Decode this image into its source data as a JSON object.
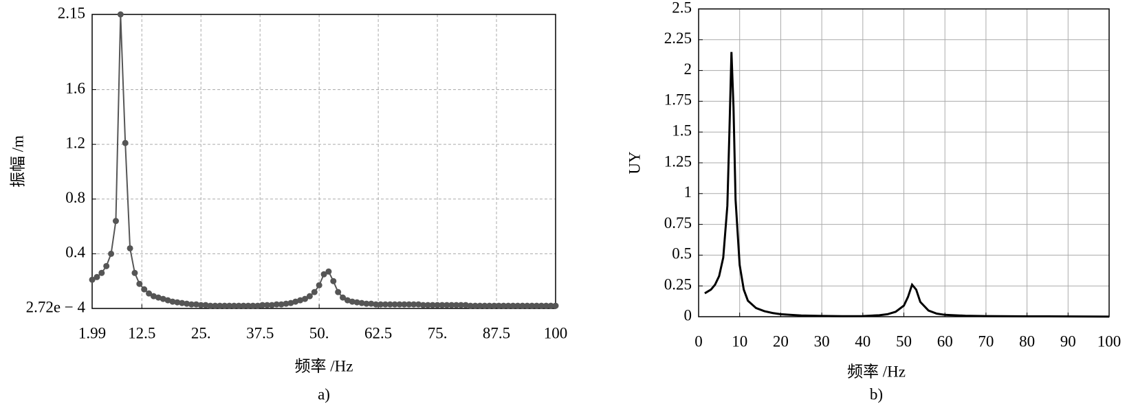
{
  "chart_data": [
    {
      "type": "line",
      "caption": "a)",
      "xlabel": "频率 /Hz",
      "ylabel": "振幅 /m",
      "color": "#555555",
      "markers": true,
      "grid": true,
      "grid_style": "dashed",
      "xlim": [
        1.99,
        100
      ],
      "ylim": [
        0.000272,
        2.15
      ],
      "xticks": [
        1.99,
        12.5,
        {
          "value": 25,
          "label": "25."
        },
        37.5,
        {
          "value": 50,
          "label": "50."
        },
        62.5,
        {
          "value": 75,
          "label": "75."
        },
        87.5,
        100
      ],
      "yticks": [
        {
          "value": 0.000272,
          "label": "2.72e − 4"
        },
        0.4,
        0.8,
        1.2,
        1.6,
        2.15
      ],
      "x": [
        2,
        3,
        4,
        5,
        6,
        7,
        8,
        9,
        10,
        11,
        12,
        13,
        14,
        15,
        16,
        17,
        18,
        19,
        20,
        21,
        22,
        23,
        24,
        25,
        26,
        27,
        28,
        29,
        30,
        31,
        32,
        33,
        34,
        35,
        36,
        37,
        38,
        39,
        40,
        41,
        42,
        43,
        44,
        45,
        46,
        47,
        48,
        49,
        50,
        51,
        52,
        53,
        54,
        55,
        56,
        57,
        58,
        59,
        60,
        61,
        62,
        63,
        64,
        65,
        66,
        67,
        68,
        69,
        70,
        71,
        72,
        73,
        74,
        75,
        76,
        77,
        78,
        79,
        80,
        81,
        82,
        83,
        84,
        85,
        86,
        87,
        88,
        89,
        90,
        91,
        92,
        93,
        94,
        95,
        96,
        97,
        98,
        99,
        100
      ],
      "values": [
        0.21,
        0.23,
        0.26,
        0.31,
        0.4,
        0.64,
        2.15,
        1.21,
        0.44,
        0.26,
        0.18,
        0.14,
        0.11,
        0.09,
        0.08,
        0.07,
        0.06,
        0.05,
        0.045,
        0.04,
        0.035,
        0.03,
        0.03,
        0.025,
        0.025,
        0.02,
        0.02,
        0.02,
        0.02,
        0.02,
        0.02,
        0.02,
        0.02,
        0.02,
        0.02,
        0.02,
        0.025,
        0.025,
        0.025,
        0.03,
        0.03,
        0.035,
        0.04,
        0.05,
        0.06,
        0.07,
        0.09,
        0.12,
        0.17,
        0.25,
        0.27,
        0.2,
        0.12,
        0.08,
        0.06,
        0.05,
        0.045,
        0.04,
        0.035,
        0.035,
        0.03,
        0.03,
        0.03,
        0.03,
        0.03,
        0.03,
        0.03,
        0.03,
        0.03,
        0.03,
        0.025,
        0.025,
        0.025,
        0.025,
        0.025,
        0.025,
        0.025,
        0.025,
        0.025,
        0.025,
        0.02,
        0.02,
        0.02,
        0.02,
        0.02,
        0.02,
        0.02,
        0.02,
        0.02,
        0.02,
        0.02,
        0.02,
        0.02,
        0.02,
        0.02,
        0.02,
        0.02,
        0.02,
        0.02
      ]
    },
    {
      "type": "line",
      "caption": "b)",
      "xlabel": "频率 /Hz",
      "ylabel": "UY",
      "color": "#000000",
      "markers": false,
      "grid": true,
      "grid_style": "solid",
      "xlim": [
        0,
        100
      ],
      "ylim": [
        0,
        2.5
      ],
      "xticks": [
        0,
        10,
        20,
        30,
        40,
        50,
        60,
        70,
        80,
        90,
        100
      ],
      "yticks": [
        0,
        0.25,
        0.5,
        0.75,
        1,
        1.25,
        1.5,
        1.75,
        2,
        2.25,
        2.5
      ],
      "x": [
        1.5,
        3,
        4,
        5,
        6,
        7,
        7.5,
        8,
        8.5,
        9,
        10,
        11,
        12,
        14,
        16,
        18,
        20,
        25,
        30,
        35,
        40,
        44,
        46,
        48,
        50,
        51,
        52,
        53,
        54,
        56,
        58,
        60,
        65,
        70,
        80,
        90,
        100
      ],
      "values": [
        0.19,
        0.22,
        0.26,
        0.33,
        0.48,
        0.9,
        1.5,
        2.15,
        1.7,
        0.95,
        0.42,
        0.22,
        0.13,
        0.07,
        0.045,
        0.03,
        0.02,
        0.01,
        0.006,
        0.004,
        0.005,
        0.012,
        0.02,
        0.04,
        0.09,
        0.16,
        0.26,
        0.22,
        0.12,
        0.05,
        0.025,
        0.015,
        0.008,
        0.005,
        0.003,
        0.002,
        0.001
      ]
    }
  ]
}
